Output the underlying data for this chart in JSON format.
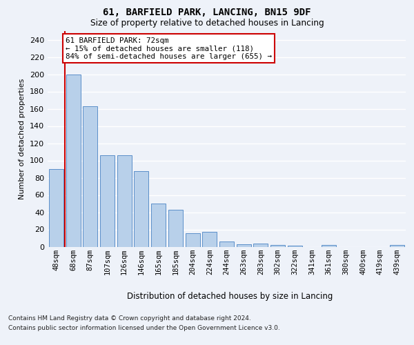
{
  "title1": "61, BARFIELD PARK, LANCING, BN15 9DF",
  "title2": "Size of property relative to detached houses in Lancing",
  "xlabel": "Distribution of detached houses by size in Lancing",
  "ylabel": "Number of detached properties",
  "categories": [
    "48sqm",
    "68sqm",
    "87sqm",
    "107sqm",
    "126sqm",
    "146sqm",
    "165sqm",
    "185sqm",
    "204sqm",
    "224sqm",
    "244sqm",
    "263sqm",
    "283sqm",
    "302sqm",
    "322sqm",
    "341sqm",
    "361sqm",
    "380sqm",
    "400sqm",
    "419sqm",
    "439sqm"
  ],
  "values": [
    90,
    200,
    163,
    106,
    106,
    88,
    50,
    43,
    16,
    17,
    6,
    3,
    4,
    2,
    1,
    0,
    2,
    0,
    0,
    0,
    2
  ],
  "bar_color": "#b8d0ea",
  "bar_edge_color": "#5b8fc9",
  "highlight_line_color": "#cc0000",
  "annotation_text": "61 BARFIELD PARK: 72sqm\n← 15% of detached houses are smaller (118)\n84% of semi-detached houses are larger (655) →",
  "annotation_box_color": "#ffffff",
  "annotation_box_edge": "#cc0000",
  "ylim": [
    0,
    250
  ],
  "yticks": [
    0,
    20,
    40,
    60,
    80,
    100,
    120,
    140,
    160,
    180,
    200,
    220,
    240
  ],
  "footer1": "Contains HM Land Registry data © Crown copyright and database right 2024.",
  "footer2": "Contains public sector information licensed under the Open Government Licence v3.0.",
  "background_color": "#eef2f9",
  "grid_color": "#d8dfe8"
}
